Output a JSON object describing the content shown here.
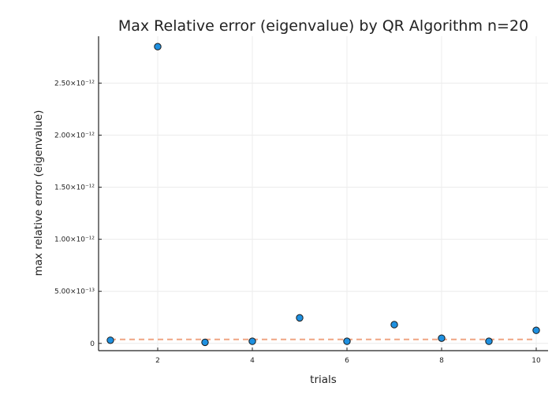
{
  "chart_data": {
    "type": "scatter",
    "title": "Max Relative error (eigenvalue) by QR Algorithm  n=20",
    "xlabel": "trials",
    "ylabel": "max relative error (eigenvalue)",
    "xlim": [
      0.75,
      10.25
    ],
    "ylim": [
      -7e-14,
      2.95e-12
    ],
    "x_ticks": [
      2,
      4,
      6,
      8,
      10
    ],
    "y_ticks": [
      {
        "value": 0,
        "label": "0"
      },
      {
        "value": 5e-13,
        "label": "5.00×10⁻¹³"
      },
      {
        "value": 1e-12,
        "label": "1.00×10⁻¹²"
      },
      {
        "value": 1.5e-12,
        "label": "1.50×10⁻¹²"
      },
      {
        "value": 2e-12,
        "label": "2.00×10⁻¹²"
      },
      {
        "value": 2.5e-12,
        "label": "2.50×10⁻¹²"
      }
    ],
    "grid": true,
    "legend": "none",
    "series": [
      {
        "kind": "scatter",
        "color": "#1e90e0",
        "x": [
          1,
          2,
          3,
          4,
          5,
          6,
          7,
          8,
          9,
          10
        ],
        "y": [
          3e-14,
          2.85e-12,
          1e-14,
          2e-14,
          2.45e-13,
          2e-14,
          1.8e-13,
          5e-14,
          2e-14,
          1.25e-13
        ]
      },
      {
        "kind": "dashed-line",
        "color": "#f0a582",
        "x": [
          1,
          10
        ],
        "y": [
          3.8e-14,
          3.8e-14
        ]
      }
    ]
  }
}
